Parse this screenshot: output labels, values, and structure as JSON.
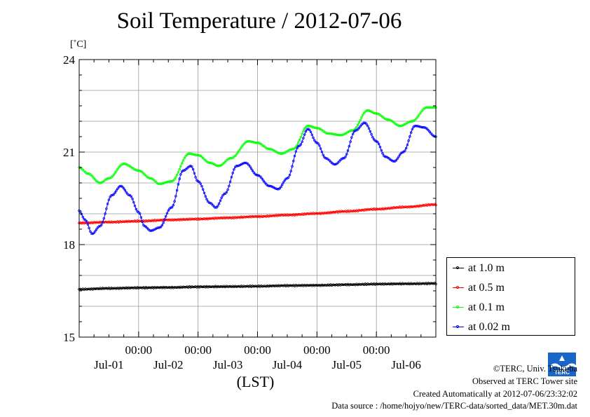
{
  "chart_data": {
    "type": "line",
    "title": "Soil Temperature / 2012-07-06",
    "ylabel": "[˚C]",
    "xlabel": "(LST)",
    "ylim": [
      15,
      24
    ],
    "yticks": [
      15,
      18,
      21,
      24
    ],
    "xlim": [
      0,
      6
    ],
    "x_time_labels": [
      {
        "x": 1,
        "label": "00:00"
      },
      {
        "x": 2,
        "label": "00:00"
      },
      {
        "x": 3,
        "label": "00:00"
      },
      {
        "x": 4,
        "label": "00:00"
      },
      {
        "x": 5,
        "label": "00:00"
      }
    ],
    "x_day_labels": [
      {
        "x": 0.5,
        "label": "Jul-01"
      },
      {
        "x": 1.5,
        "label": "Jul-02"
      },
      {
        "x": 2.5,
        "label": "Jul-03"
      },
      {
        "x": 3.5,
        "label": "Jul-04"
      },
      {
        "x": 4.5,
        "label": "Jul-05"
      },
      {
        "x": 5.5,
        "label": "Jul-06"
      }
    ],
    "grid": true,
    "legend_position": "right",
    "series": [
      {
        "name": "at 1.0 m",
        "color": "#000000",
        "points": [
          [
            0,
            16.55
          ],
          [
            0.5,
            16.58
          ],
          [
            1,
            16.6
          ],
          [
            1.5,
            16.61
          ],
          [
            2,
            16.63
          ],
          [
            2.5,
            16.64
          ],
          [
            3,
            16.65
          ],
          [
            3.5,
            16.67
          ],
          [
            4,
            16.68
          ],
          [
            4.5,
            16.7
          ],
          [
            5,
            16.72
          ],
          [
            5.5,
            16.73
          ],
          [
            6,
            16.74
          ]
        ]
      },
      {
        "name": "at 0.5 m",
        "color": "#ff0000",
        "points": [
          [
            0,
            18.7
          ],
          [
            0.5,
            18.73
          ],
          [
            1,
            18.76
          ],
          [
            1.5,
            18.8
          ],
          [
            2,
            18.83
          ],
          [
            2.5,
            18.87
          ],
          [
            3,
            18.91
          ],
          [
            3.5,
            18.96
          ],
          [
            4,
            19.01
          ],
          [
            4.5,
            19.08
          ],
          [
            5,
            19.15
          ],
          [
            5.5,
            19.22
          ],
          [
            6,
            19.3
          ]
        ]
      },
      {
        "name": "at 0.1 m",
        "color": "#00ff00",
        "points": [
          [
            0,
            20.5
          ],
          [
            0.15,
            20.3
          ],
          [
            0.35,
            20.0
          ],
          [
            0.5,
            20.15
          ],
          [
            0.75,
            20.62
          ],
          [
            1,
            20.4
          ],
          [
            1.2,
            20.15
          ],
          [
            1.35,
            19.97
          ],
          [
            1.55,
            20.05
          ],
          [
            1.85,
            20.95
          ],
          [
            2,
            20.9
          ],
          [
            2.2,
            20.65
          ],
          [
            2.35,
            20.55
          ],
          [
            2.55,
            20.8
          ],
          [
            2.85,
            21.35
          ],
          [
            3,
            21.3
          ],
          [
            3.2,
            21.1
          ],
          [
            3.4,
            20.95
          ],
          [
            3.6,
            21.1
          ],
          [
            3.85,
            21.85
          ],
          [
            4,
            21.78
          ],
          [
            4.2,
            21.6
          ],
          [
            4.4,
            21.55
          ],
          [
            4.6,
            21.7
          ],
          [
            4.85,
            22.35
          ],
          [
            5,
            22.25
          ],
          [
            5.2,
            22.05
          ],
          [
            5.4,
            21.85
          ],
          [
            5.6,
            22.0
          ],
          [
            5.85,
            22.45
          ],
          [
            6,
            22.45
          ]
        ]
      },
      {
        "name": "at 0.02 m",
        "color": "#0000ff",
        "points": [
          [
            0,
            19.1
          ],
          [
            0.1,
            18.8
          ],
          [
            0.22,
            18.35
          ],
          [
            0.35,
            18.6
          ],
          [
            0.55,
            19.6
          ],
          [
            0.7,
            19.9
          ],
          [
            0.85,
            19.6
          ],
          [
            1,
            19.05
          ],
          [
            1.1,
            18.6
          ],
          [
            1.2,
            18.45
          ],
          [
            1.35,
            18.55
          ],
          [
            1.55,
            19.2
          ],
          [
            1.75,
            20.4
          ],
          [
            1.88,
            20.55
          ],
          [
            2,
            20.05
          ],
          [
            2.2,
            19.35
          ],
          [
            2.3,
            19.2
          ],
          [
            2.45,
            19.65
          ],
          [
            2.65,
            20.55
          ],
          [
            2.8,
            20.65
          ],
          [
            3,
            20.25
          ],
          [
            3.2,
            19.9
          ],
          [
            3.35,
            19.8
          ],
          [
            3.5,
            20.15
          ],
          [
            3.7,
            21.2
          ],
          [
            3.85,
            21.75
          ],
          [
            4,
            21.3
          ],
          [
            4.15,
            20.8
          ],
          [
            4.3,
            20.6
          ],
          [
            4.45,
            20.8
          ],
          [
            4.65,
            21.7
          ],
          [
            4.8,
            21.95
          ],
          [
            5,
            21.35
          ],
          [
            5.15,
            20.85
          ],
          [
            5.3,
            20.7
          ],
          [
            5.45,
            21.0
          ],
          [
            5.65,
            21.85
          ],
          [
            5.8,
            21.8
          ],
          [
            6,
            21.5
          ]
        ]
      }
    ]
  },
  "legend": {
    "items": [
      {
        "label": "at 1.0 m",
        "color": "#000000"
      },
      {
        "label": "at 0.5 m",
        "color": "#ff0000"
      },
      {
        "label": "at 0.1 m",
        "color": "#00ff00"
      },
      {
        "label": "at 0.02 m",
        "color": "#0000ff"
      }
    ]
  },
  "footer": {
    "copyright": "©TERC, Univ. Tsukuba",
    "site": "Observed at TERC Tower site",
    "created": "Created Automatically at 2012-07-06/23:32:02",
    "source": "Data source : /home/hojyo/new/TERC-data/sorted_data/MET.30m.dat",
    "logo_text": "TERC",
    "logo_color": "#1a66c8"
  }
}
